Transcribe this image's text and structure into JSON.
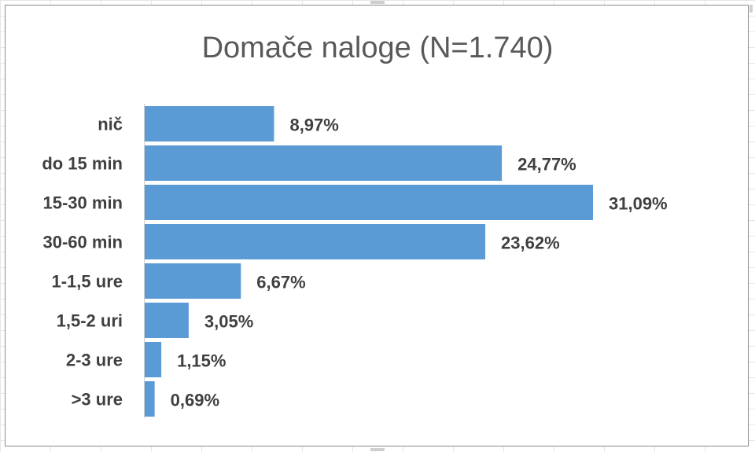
{
  "chart_data": {
    "type": "bar",
    "orientation": "horizontal",
    "title": "Domače naloge (N=1.740)",
    "categories": [
      "nič",
      "do 15 min",
      "15-30 min",
      "30-60 min",
      "1-1,5 ure",
      "1,5-2 uri",
      "2-3 ure",
      ">3 ure"
    ],
    "values": [
      8.97,
      24.77,
      31.09,
      23.62,
      6.67,
      3.05,
      1.15,
      0.69
    ],
    "value_labels": [
      "8,97%",
      "24,77%",
      "31,09%",
      "23,62%",
      "6,67%",
      "3,05%",
      "1,15%",
      "0,69%"
    ],
    "xlim": [
      0,
      31.09
    ],
    "grid": false,
    "legend": "none",
    "bar_color": "#5b9bd5"
  }
}
